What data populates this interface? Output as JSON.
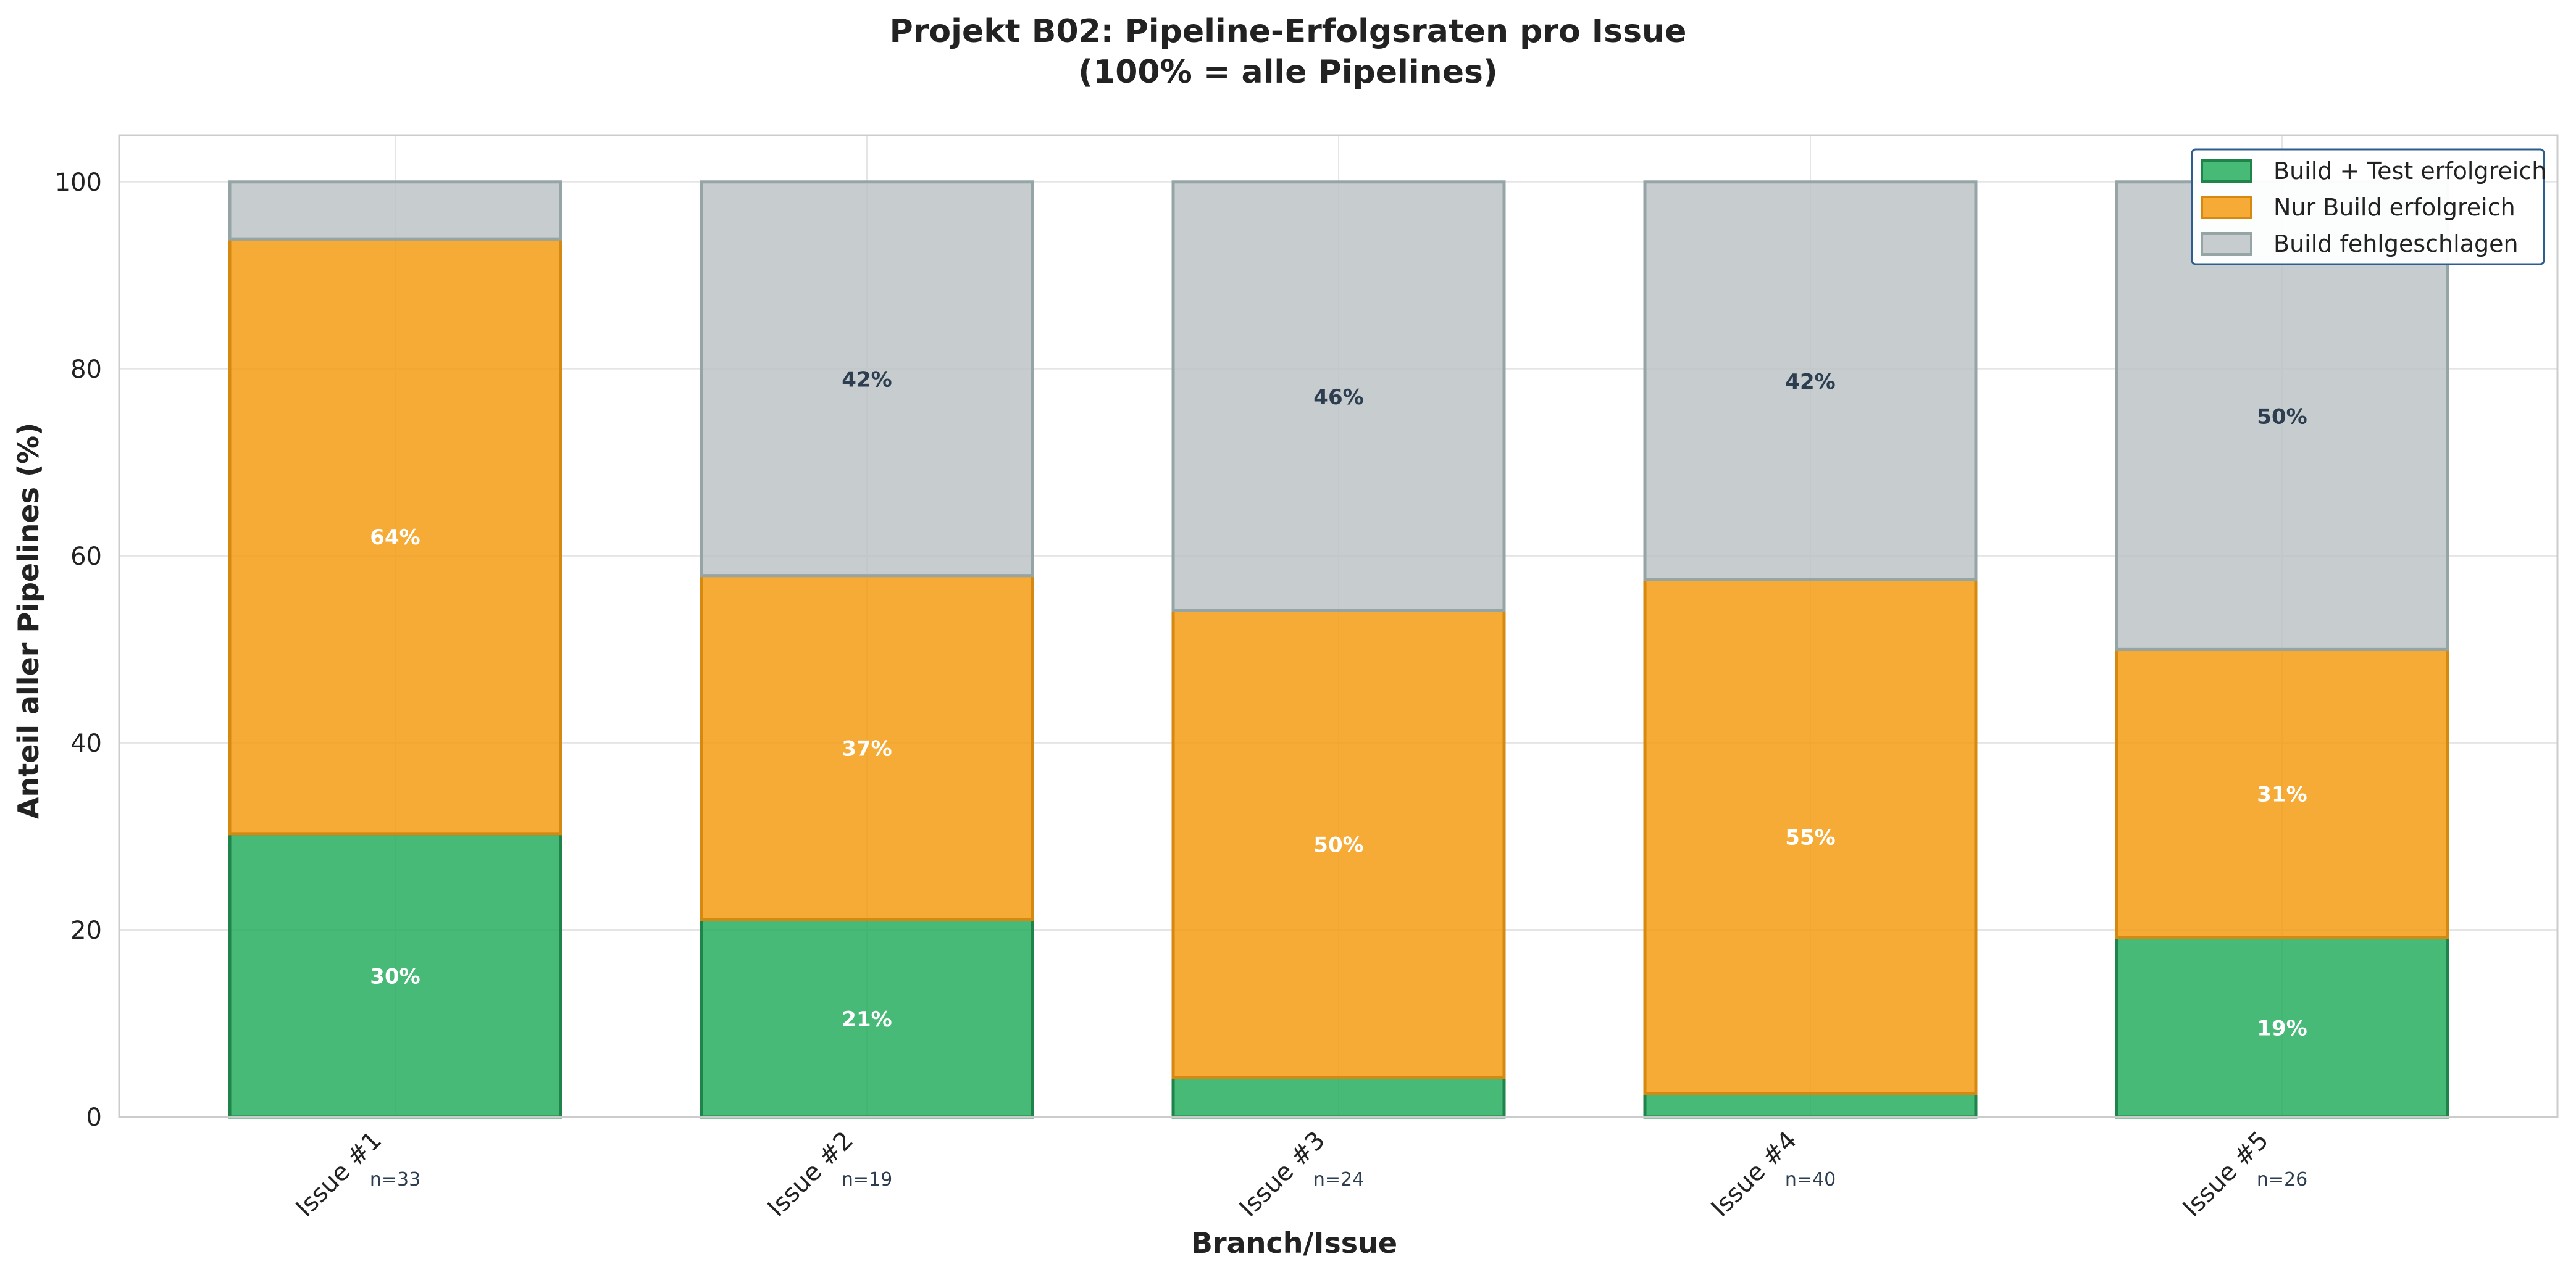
{
  "chart_data": {
    "type": "bar",
    "stacked": true,
    "title_line1": "Projekt B02: Pipeline-Erfolgsraten pro Issue",
    "title_line2": "(100% = alle Pipelines)",
    "xlabel": "Branch/Issue",
    "ylabel": "Anteil aller Pipelines (%)",
    "ylim": [
      0,
      105
    ],
    "yticks": [
      0,
      20,
      40,
      60,
      80,
      100
    ],
    "grid": true,
    "legend_position": "top-right",
    "categories": [
      "Issue #1",
      "Issue #2",
      "Issue #3",
      "Issue #4",
      "Issue #5"
    ],
    "counts": [
      "n=33",
      "n=19",
      "n=24",
      "n=40",
      "n=26"
    ],
    "series": [
      {
        "name": "Build + Test erfolgreich",
        "color": "#27ae60",
        "edge_color": "#1e8449",
        "label_color": "#ffffff",
        "values": [
          30.3,
          21.1,
          4.2,
          2.5,
          19.2
        ],
        "labels": [
          "30%",
          "21%",
          "",
          "",
          "19%"
        ]
      },
      {
        "name": "Nur Build erfolgreich",
        "color": "#f39c12",
        "edge_color": "#d68910",
        "label_color": "#ffffff",
        "values": [
          63.6,
          36.8,
          50.0,
          55.0,
          30.8
        ],
        "labels": [
          "64%",
          "37%",
          "50%",
          "55%",
          "31%"
        ]
      },
      {
        "name": "Build fehlgeschlagen",
        "color": "#bdc3c7",
        "edge_color": "#95a5a6",
        "label_color": "#2c3e50",
        "values": [
          6.1,
          42.1,
          45.8,
          42.5,
          50.0
        ],
        "labels": [
          "",
          "42%",
          "46%",
          "42%",
          "50%"
        ]
      }
    ]
  }
}
